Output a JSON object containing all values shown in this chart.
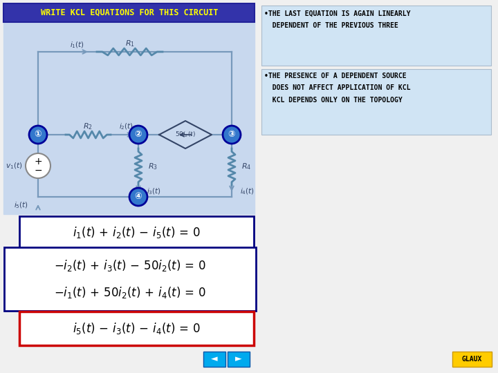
{
  "bg_color": "#dce8f5",
  "white_bg": "#f0f0f0",
  "title": "WRITE KCL EQUATIONS FOR THIS CIRCUIT",
  "title_bg": "#3333aa",
  "title_fg": "#ffff00",
  "circuit_bg": "#c8d8ee",
  "bullet1_line1": "•THE LAST EQUATION IS AGAIN LINEARLY",
  "bullet1_line2": "  DEPENDENT OF THE PREVIOUS THREE",
  "bullet2_line1": "•THE PRESENCE OF A DEPENDENT SOURCE",
  "bullet2_line2": "  DOES NOT AFFECT APPLICATION OF KCL",
  "bullet2_line3": "  KCL DEPENDS ONLY ON THE TOPOLOGY",
  "eq1": "$i_1(t)\\,+\\,i_2(t)\\,-\\,i_5(t)\\,=\\,0$",
  "eq2": "$-i_2(t)\\,+\\,i_3(t)\\,-\\,50i_2(t)\\,=\\,0$",
  "eq3": "$-i_1(t)\\,+\\,50i_2(t)\\,+\\,i_4(t)\\,=\\,0$",
  "eq4": "$i_5(t)\\,-\\,i_3(t)\\,-\\,i_4(t)\\,=\\,0$",
  "eq_box1_color": "#000080",
  "eq_box2_color": "#cc0000",
  "node_color": "#3377cc",
  "node_border": "#000099",
  "wire_color": "#7799bb",
  "resistor_color": "#5588aa"
}
